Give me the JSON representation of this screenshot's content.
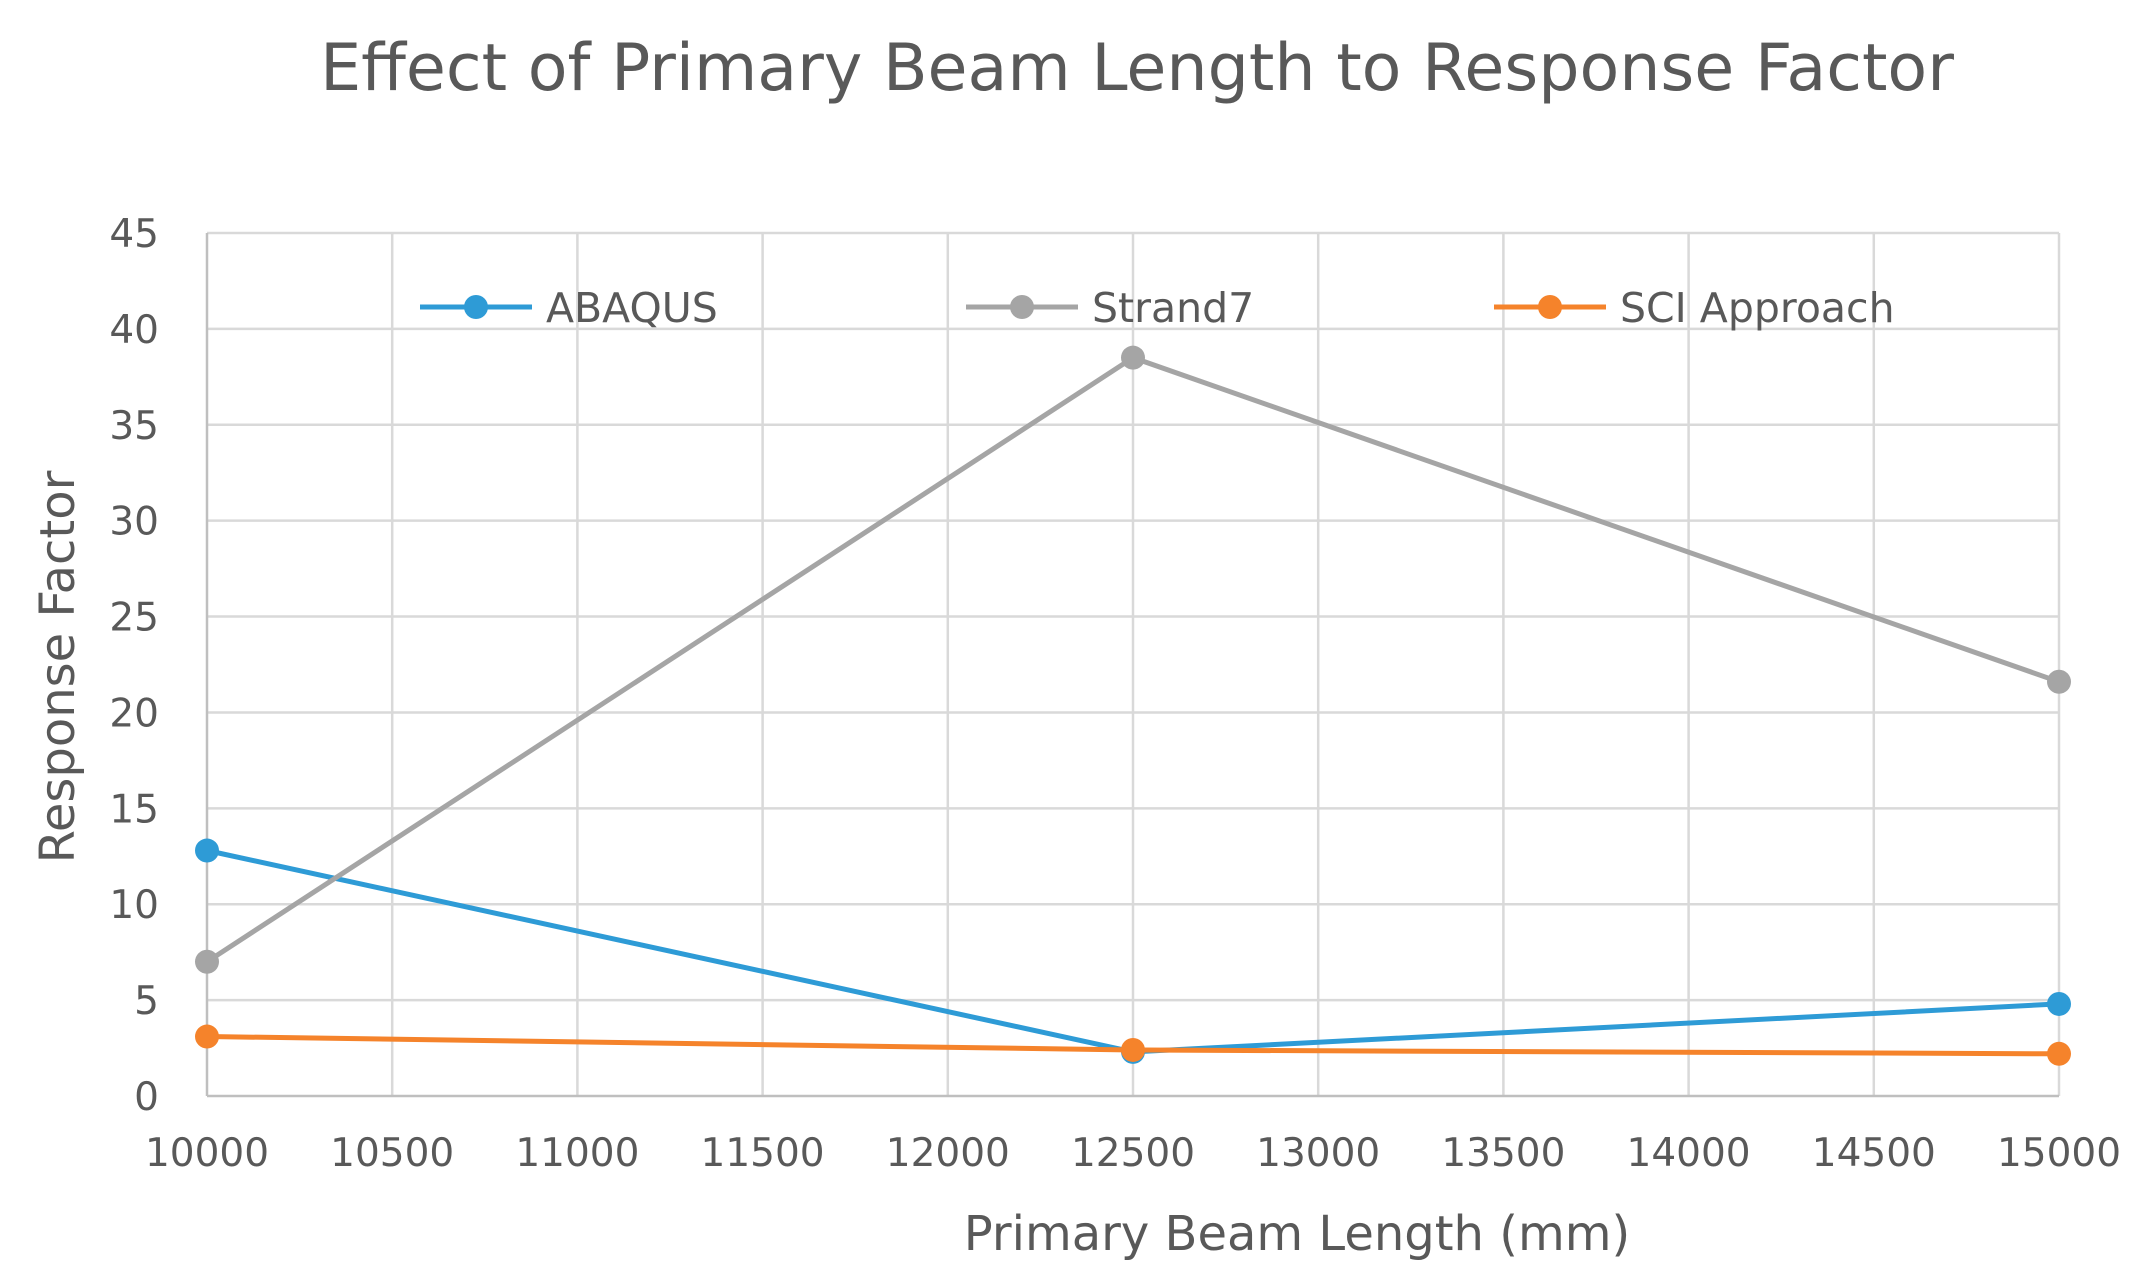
{
  "chart_data": {
    "type": "line",
    "title": "Effect of Primary Beam Length to Response Factor",
    "xlabel": "Primary Beam Length (mm)",
    "ylabel": "Response Factor",
    "x": [
      10000,
      12500,
      15000
    ],
    "xlim": [
      10000,
      15000
    ],
    "xticks": [
      10000,
      10500,
      11000,
      11500,
      12000,
      12500,
      13000,
      13500,
      14000,
      14500,
      15000
    ],
    "ylim": [
      0,
      45
    ],
    "yticks": [
      0,
      5,
      10,
      15,
      20,
      25,
      30,
      35,
      40,
      45
    ],
    "grid": true,
    "legend_position": "top",
    "series": [
      {
        "name": "ABAQUS",
        "values": [
          12.8,
          2.3,
          4.8
        ],
        "color": "#2E9BD6"
      },
      {
        "name": "Strand7",
        "values": [
          7.0,
          38.5,
          21.6
        ],
        "color": "#A5A5A5"
      },
      {
        "name": "SCI Approach",
        "values": [
          3.1,
          2.4,
          2.2
        ],
        "color": "#F5832B"
      }
    ]
  }
}
